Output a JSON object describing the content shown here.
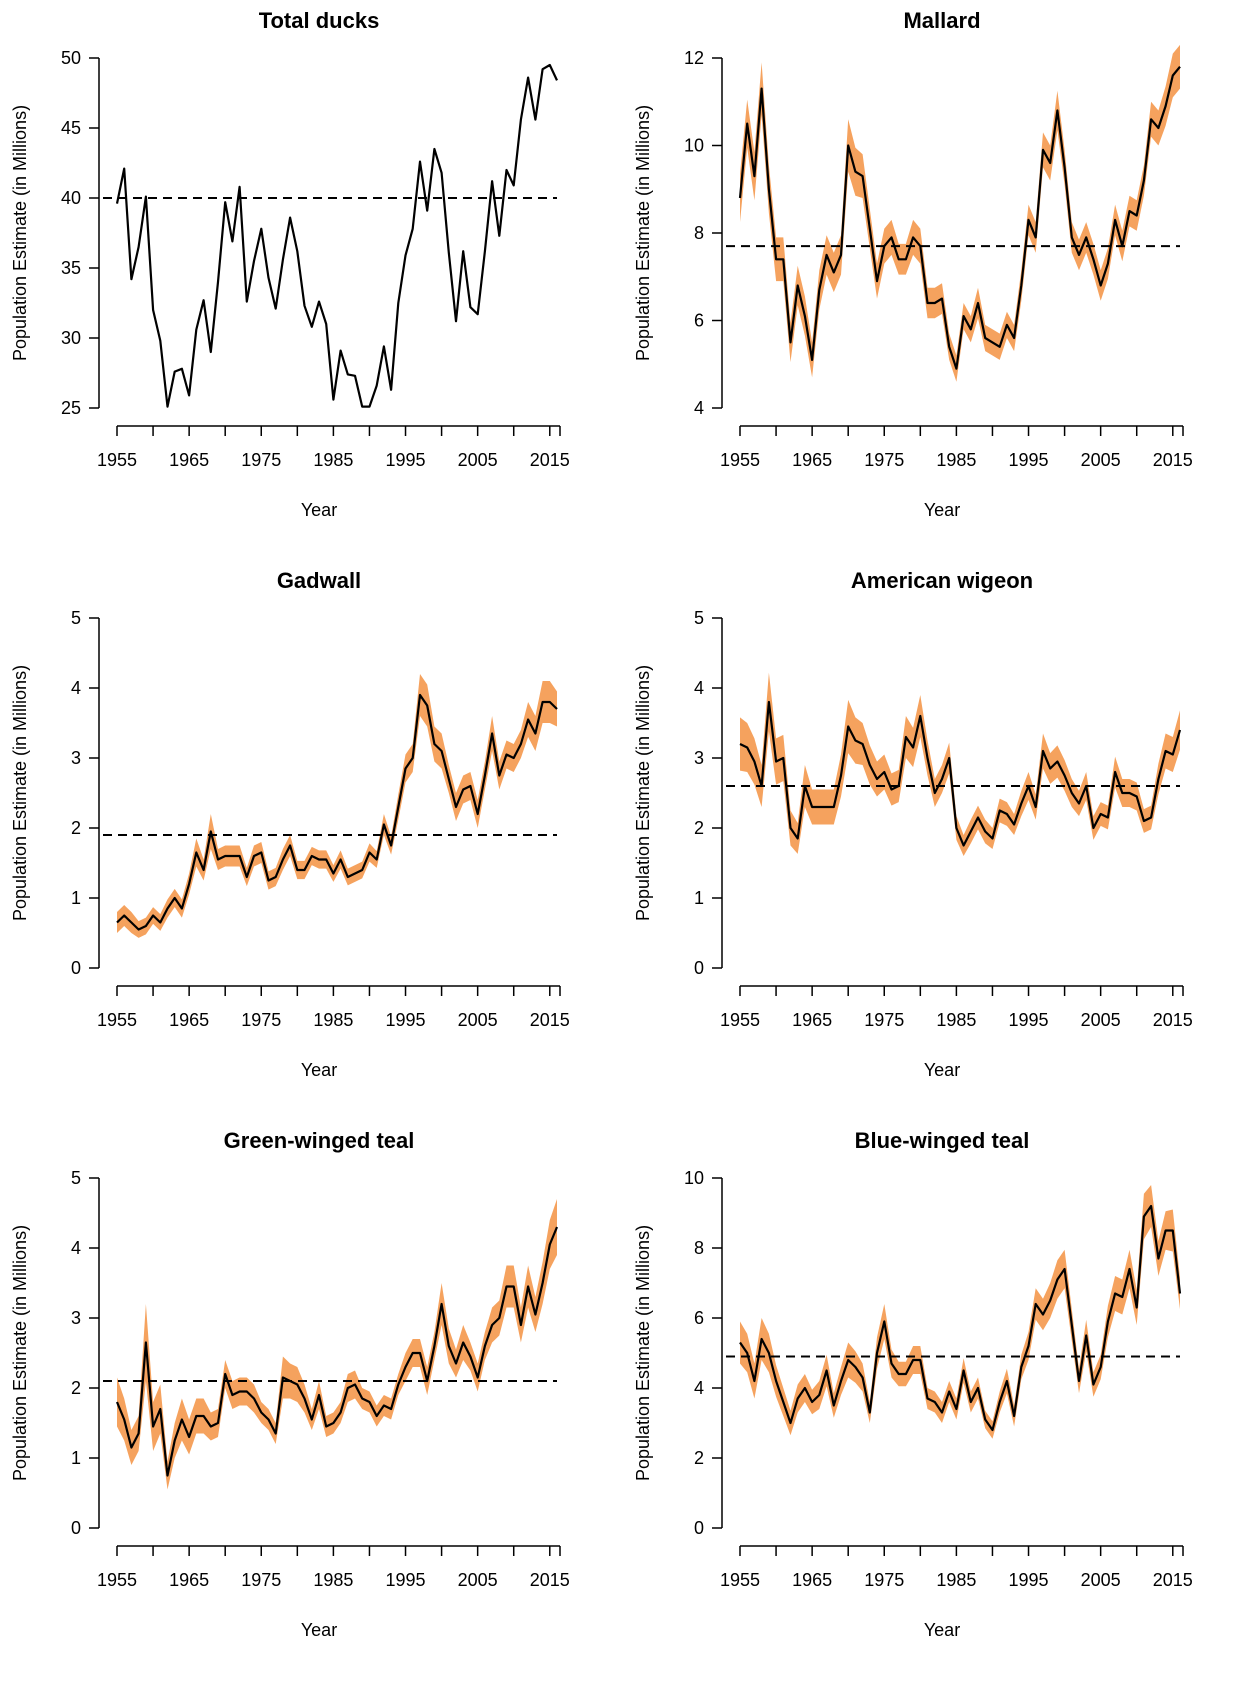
{
  "colors": {
    "band": "#f5a25e",
    "line": "#000000",
    "reference": "#000000"
  },
  "chart_data": [
    {
      "type": "line",
      "title": "Total ducks",
      "xlabel": "Year",
      "ylabel": "Population Estimate (in Millions)",
      "xlim": [
        1955,
        2016
      ],
      "ylim": [
        25,
        50
      ],
      "xticks": [
        "1955",
        "1965",
        "1975",
        "1985",
        "1995",
        "2005",
        "2015"
      ],
      "yticks": [
        "25",
        "30",
        "35",
        "40",
        "45",
        "50"
      ],
      "reference_line": 40,
      "has_band": false,
      "x": [
        1955,
        1956,
        1957,
        1958,
        1959,
        1960,
        1961,
        1962,
        1963,
        1964,
        1965,
        1966,
        1967,
        1968,
        1969,
        1970,
        1971,
        1972,
        1973,
        1974,
        1975,
        1976,
        1977,
        1978,
        1979,
        1980,
        1981,
        1982,
        1983,
        1984,
        1985,
        1986,
        1987,
        1988,
        1989,
        1990,
        1991,
        1992,
        1993,
        1994,
        1995,
        1996,
        1997,
        1998,
        1999,
        2000,
        2001,
        2002,
        2003,
        2004,
        2005,
        2006,
        2007,
        2008,
        2009,
        2010,
        2011,
        2012,
        2013,
        2014,
        2015,
        2016
      ],
      "y": [
        39.6,
        42.1,
        34.2,
        36.5,
        40.1,
        32.0,
        29.8,
        25.1,
        27.6,
        27.8,
        25.9,
        30.6,
        32.7,
        29.0,
        34.0,
        39.7,
        36.9,
        40.8,
        32.6,
        35.5,
        37.8,
        34.3,
        32.1,
        35.6,
        38.6,
        36.2,
        32.3,
        30.8,
        32.6,
        31.0,
        25.6,
        29.1,
        27.4,
        27.3,
        25.1,
        25.1,
        26.6,
        29.4,
        26.3,
        32.5,
        35.9,
        37.8,
        42.6,
        39.1,
        43.5,
        41.8,
        36.1,
        31.2,
        36.2,
        32.2,
        31.7,
        36.2,
        41.2,
        37.3,
        42.0,
        40.9,
        45.6,
        48.6,
        45.6,
        49.2,
        49.5,
        48.4
      ]
    },
    {
      "type": "line",
      "title": "Mallard",
      "xlabel": "Year",
      "ylabel": "Population Estimate (in Millions)",
      "xlim": [
        1955,
        2016
      ],
      "ylim": [
        4,
        12
      ],
      "xticks": [
        "1955",
        "1965",
        "1975",
        "1985",
        "1995",
        "2005",
        "2015"
      ],
      "yticks": [
        "4",
        "6",
        "8",
        "10",
        "12"
      ],
      "reference_line": 7.7,
      "has_band": true,
      "x": [
        1955,
        1956,
        1957,
        1958,
        1959,
        1960,
        1961,
        1962,
        1963,
        1964,
        1965,
        1966,
        1967,
        1968,
        1969,
        1970,
        1971,
        1972,
        1973,
        1974,
        1975,
        1976,
        1977,
        1978,
        1979,
        1980,
        1981,
        1982,
        1983,
        1984,
        1985,
        1986,
        1987,
        1988,
        1989,
        1990,
        1991,
        1992,
        1993,
        1994,
        1995,
        1996,
        1997,
        1998,
        1999,
        2000,
        2001,
        2002,
        2003,
        2004,
        2005,
        2006,
        2007,
        2008,
        2009,
        2010,
        2011,
        2012,
        2013,
        2014,
        2015,
        2016
      ],
      "y": [
        8.8,
        10.5,
        9.3,
        11.3,
        9.0,
        7.4,
        7.4,
        5.5,
        6.8,
        6.1,
        5.1,
        6.7,
        7.5,
        7.1,
        7.5,
        10.0,
        9.4,
        9.3,
        8.1,
        6.9,
        7.7,
        7.9,
        7.4,
        7.4,
        7.9,
        7.7,
        6.4,
        6.4,
        6.5,
        5.4,
        4.9,
        6.1,
        5.8,
        6.4,
        5.6,
        5.5,
        5.4,
        5.9,
        5.6,
        6.8,
        8.3,
        7.9,
        9.9,
        9.6,
        10.8,
        9.5,
        7.9,
        7.5,
        7.9,
        7.4,
        6.8,
        7.3,
        8.3,
        7.7,
        8.5,
        8.4,
        9.2,
        10.6,
        10.4,
        10.9,
        11.6,
        11.8
      ],
      "band_halfwidth": [
        0.55,
        0.55,
        0.55,
        0.6,
        0.55,
        0.5,
        0.5,
        0.45,
        0.45,
        0.45,
        0.4,
        0.45,
        0.45,
        0.45,
        0.45,
        0.6,
        0.55,
        0.5,
        0.45,
        0.4,
        0.4,
        0.4,
        0.35,
        0.35,
        0.4,
        0.4,
        0.35,
        0.35,
        0.35,
        0.3,
        0.3,
        0.3,
        0.3,
        0.35,
        0.3,
        0.3,
        0.3,
        0.3,
        0.3,
        0.35,
        0.35,
        0.35,
        0.4,
        0.4,
        0.45,
        0.4,
        0.35,
        0.35,
        0.35,
        0.35,
        0.35,
        0.35,
        0.35,
        0.35,
        0.35,
        0.35,
        0.35,
        0.4,
        0.4,
        0.45,
        0.5,
        0.5
      ]
    },
    {
      "type": "line",
      "title": "Gadwall",
      "xlabel": "Year",
      "ylabel": "Population Estimate (in Millions)",
      "xlim": [
        1955,
        2016
      ],
      "ylim": [
        0,
        5
      ],
      "xticks": [
        "1955",
        "1965",
        "1975",
        "1985",
        "1995",
        "2005",
        "2015"
      ],
      "yticks": [
        "0",
        "1",
        "2",
        "3",
        "4",
        "5"
      ],
      "reference_line": 1.9,
      "has_band": true,
      "x": [
        1955,
        1956,
        1957,
        1958,
        1959,
        1960,
        1961,
        1962,
        1963,
        1964,
        1965,
        1966,
        1967,
        1968,
        1969,
        1970,
        1971,
        1972,
        1973,
        1974,
        1975,
        1976,
        1977,
        1978,
        1979,
        1980,
        1981,
        1982,
        1983,
        1984,
        1985,
        1986,
        1987,
        1988,
        1989,
        1990,
        1991,
        1992,
        1993,
        1994,
        1995,
        1996,
        1997,
        1998,
        1999,
        2000,
        2001,
        2002,
        2003,
        2004,
        2005,
        2006,
        2007,
        2008,
        2009,
        2010,
        2011,
        2012,
        2013,
        2014,
        2015,
        2016
      ],
      "y": [
        0.65,
        0.75,
        0.65,
        0.55,
        0.6,
        0.75,
        0.65,
        0.85,
        1.0,
        0.85,
        1.2,
        1.65,
        1.4,
        1.95,
        1.55,
        1.6,
        1.6,
        1.6,
        1.3,
        1.6,
        1.65,
        1.25,
        1.3,
        1.55,
        1.75,
        1.4,
        1.4,
        1.6,
        1.55,
        1.55,
        1.35,
        1.55,
        1.3,
        1.35,
        1.4,
        1.65,
        1.55,
        2.05,
        1.75,
        2.3,
        2.85,
        3.0,
        3.9,
        3.75,
        3.2,
        3.1,
        2.7,
        2.3,
        2.55,
        2.6,
        2.2,
        2.75,
        3.35,
        2.75,
        3.05,
        3.0,
        3.2,
        3.55,
        3.35,
        3.8,
        3.8,
        3.7
      ],
      "band_halfwidth": [
        0.15,
        0.15,
        0.15,
        0.12,
        0.12,
        0.12,
        0.12,
        0.13,
        0.13,
        0.13,
        0.15,
        0.2,
        0.15,
        0.25,
        0.15,
        0.15,
        0.15,
        0.15,
        0.13,
        0.15,
        0.15,
        0.13,
        0.13,
        0.15,
        0.15,
        0.13,
        0.13,
        0.13,
        0.13,
        0.13,
        0.12,
        0.13,
        0.12,
        0.12,
        0.12,
        0.13,
        0.12,
        0.15,
        0.13,
        0.18,
        0.2,
        0.2,
        0.3,
        0.3,
        0.25,
        0.25,
        0.2,
        0.2,
        0.2,
        0.2,
        0.2,
        0.2,
        0.25,
        0.2,
        0.2,
        0.2,
        0.2,
        0.25,
        0.25,
        0.3,
        0.3,
        0.25
      ]
    },
    {
      "type": "line",
      "title": "American wigeon",
      "xlabel": "Year",
      "ylabel": "Population Estimate (in Millions)",
      "xlim": [
        1955,
        2016
      ],
      "ylim": [
        0,
        5
      ],
      "xticks": [
        "1955",
        "1965",
        "1975",
        "1985",
        "1995",
        "2005",
        "2015"
      ],
      "yticks": [
        "0",
        "1",
        "2",
        "3",
        "4",
        "5"
      ],
      "reference_line": 2.6,
      "has_band": true,
      "x": [
        1955,
        1956,
        1957,
        1958,
        1959,
        1960,
        1961,
        1962,
        1963,
        1964,
        1965,
        1966,
        1967,
        1968,
        1969,
        1970,
        1971,
        1972,
        1973,
        1974,
        1975,
        1976,
        1977,
        1978,
        1979,
        1980,
        1981,
        1982,
        1983,
        1984,
        1985,
        1986,
        1987,
        1988,
        1989,
        1990,
        1991,
        1992,
        1993,
        1994,
        1995,
        1996,
        1997,
        1998,
        1999,
        2000,
        2001,
        2002,
        2003,
        2004,
        2005,
        2006,
        2007,
        2008,
        2009,
        2010,
        2011,
        2012,
        2013,
        2014,
        2015,
        2016
      ],
      "y": [
        3.2,
        3.15,
        2.95,
        2.6,
        3.8,
        2.95,
        3.0,
        2.0,
        1.85,
        2.6,
        2.3,
        2.3,
        2.3,
        2.3,
        2.75,
        3.45,
        3.25,
        3.2,
        2.9,
        2.7,
        2.8,
        2.55,
        2.6,
        3.3,
        3.15,
        3.6,
        3.0,
        2.5,
        2.7,
        3.0,
        2.0,
        1.75,
        1.95,
        2.15,
        1.95,
        1.85,
        2.25,
        2.2,
        2.05,
        2.35,
        2.6,
        2.3,
        3.1,
        2.85,
        2.95,
        2.75,
        2.5,
        2.35,
        2.6,
        2.0,
        2.2,
        2.15,
        2.8,
        2.5,
        2.5,
        2.45,
        2.1,
        2.15,
        2.7,
        3.1,
        3.05,
        3.4
      ],
      "band_halfwidth": [
        0.38,
        0.35,
        0.33,
        0.3,
        0.42,
        0.33,
        0.33,
        0.25,
        0.22,
        0.3,
        0.25,
        0.25,
        0.25,
        0.25,
        0.3,
        0.38,
        0.33,
        0.3,
        0.28,
        0.25,
        0.25,
        0.23,
        0.23,
        0.3,
        0.28,
        0.3,
        0.25,
        0.2,
        0.2,
        0.22,
        0.17,
        0.15,
        0.17,
        0.17,
        0.17,
        0.15,
        0.17,
        0.17,
        0.15,
        0.18,
        0.2,
        0.18,
        0.25,
        0.22,
        0.23,
        0.22,
        0.2,
        0.18,
        0.2,
        0.17,
        0.17,
        0.17,
        0.22,
        0.2,
        0.2,
        0.2,
        0.17,
        0.17,
        0.22,
        0.25,
        0.25,
        0.28
      ]
    },
    {
      "type": "line",
      "title": "Green-winged teal",
      "xlabel": "Year",
      "ylabel": "Population Estimate (in Millions)",
      "xlim": [
        1955,
        2016
      ],
      "ylim": [
        0,
        5
      ],
      "xticks": [
        "1955",
        "1965",
        "1975",
        "1985",
        "1995",
        "2005",
        "2015"
      ],
      "yticks": [
        "0",
        "1",
        "2",
        "3",
        "4",
        "5"
      ],
      "reference_line": 2.1,
      "has_band": true,
      "x": [
        1955,
        1956,
        1957,
        1958,
        1959,
        1960,
        1961,
        1962,
        1963,
        1964,
        1965,
        1966,
        1967,
        1968,
        1969,
        1970,
        1971,
        1972,
        1973,
        1974,
        1975,
        1976,
        1977,
        1978,
        1979,
        1980,
        1981,
        1982,
        1983,
        1984,
        1985,
        1986,
        1987,
        1988,
        1989,
        1990,
        1991,
        1992,
        1993,
        1994,
        1995,
        1996,
        1997,
        1998,
        1999,
        2000,
        2001,
        2002,
        2003,
        2004,
        2005,
        2006,
        2007,
        2008,
        2009,
        2010,
        2011,
        2012,
        2013,
        2014,
        2015,
        2016
      ],
      "y": [
        1.8,
        1.55,
        1.15,
        1.35,
        2.65,
        1.45,
        1.7,
        0.75,
        1.25,
        1.55,
        1.3,
        1.6,
        1.6,
        1.45,
        1.5,
        2.2,
        1.9,
        1.95,
        1.95,
        1.85,
        1.65,
        1.55,
        1.35,
        2.15,
        2.1,
        2.05,
        1.85,
        1.55,
        1.9,
        1.45,
        1.5,
        1.65,
        2.0,
        2.05,
        1.85,
        1.8,
        1.6,
        1.75,
        1.7,
        2.05,
        2.3,
        2.5,
        2.5,
        2.1,
        2.6,
        3.2,
        2.6,
        2.35,
        2.65,
        2.45,
        2.15,
        2.6,
        2.9,
        3.0,
        3.45,
        3.45,
        2.9,
        3.45,
        3.05,
        3.5,
        4.05,
        4.3
      ],
      "band_halfwidth": [
        0.35,
        0.3,
        0.25,
        0.25,
        0.55,
        0.35,
        0.35,
        0.2,
        0.25,
        0.3,
        0.25,
        0.25,
        0.25,
        0.2,
        0.2,
        0.2,
        0.2,
        0.2,
        0.2,
        0.2,
        0.15,
        0.15,
        0.15,
        0.3,
        0.25,
        0.25,
        0.2,
        0.15,
        0.2,
        0.15,
        0.15,
        0.15,
        0.2,
        0.2,
        0.15,
        0.15,
        0.15,
        0.15,
        0.15,
        0.15,
        0.2,
        0.2,
        0.2,
        0.2,
        0.2,
        0.3,
        0.25,
        0.2,
        0.25,
        0.2,
        0.2,
        0.2,
        0.25,
        0.25,
        0.3,
        0.3,
        0.25,
        0.3,
        0.25,
        0.3,
        0.35,
        0.4
      ]
    },
    {
      "type": "line",
      "title": "Blue-winged teal",
      "xlabel": "Year",
      "ylabel": "Population Estimate (in Millions)",
      "xlim": [
        1955,
        2016
      ],
      "ylim": [
        0,
        10
      ],
      "xticks": [
        "1955",
        "1965",
        "1975",
        "1985",
        "1995",
        "2005",
        "2015"
      ],
      "yticks": [
        "0",
        "2",
        "4",
        "6",
        "8",
        "10"
      ],
      "reference_line": 4.9,
      "has_band": true,
      "x": [
        1955,
        1956,
        1957,
        1958,
        1959,
        1960,
        1961,
        1962,
        1963,
        1964,
        1965,
        1966,
        1967,
        1968,
        1969,
        1970,
        1971,
        1972,
        1973,
        1974,
        1975,
        1976,
        1977,
        1978,
        1979,
        1980,
        1981,
        1982,
        1983,
        1984,
        1985,
        1986,
        1987,
        1988,
        1989,
        1990,
        1991,
        1992,
        1993,
        1994,
        1995,
        1996,
        1997,
        1998,
        1999,
        2000,
        2001,
        2002,
        2003,
        2004,
        2005,
        2006,
        2007,
        2008,
        2009,
        2010,
        2011,
        2012,
        2013,
        2014,
        2015,
        2016
      ],
      "y": [
        5.3,
        5.0,
        4.2,
        5.4,
        5.0,
        4.2,
        3.6,
        3.0,
        3.7,
        4.0,
        3.6,
        3.8,
        4.5,
        3.5,
        4.2,
        4.8,
        4.6,
        4.3,
        3.3,
        5.0,
        5.9,
        4.7,
        4.4,
        4.4,
        4.8,
        4.8,
        3.7,
        3.6,
        3.3,
        3.9,
        3.4,
        4.5,
        3.6,
        4.0,
        3.1,
        2.8,
        3.6,
        4.2,
        3.2,
        4.6,
        5.2,
        6.4,
        6.1,
        6.5,
        7.1,
        7.4,
        5.8,
        4.2,
        5.5,
        4.1,
        4.6,
        5.9,
        6.7,
        6.6,
        7.4,
        6.3,
        8.9,
        9.2,
        7.7,
        8.5,
        8.5,
        6.7
      ],
      "band_halfwidth": [
        0.6,
        0.55,
        0.5,
        0.6,
        0.55,
        0.45,
        0.4,
        0.35,
        0.4,
        0.4,
        0.35,
        0.4,
        0.45,
        0.35,
        0.4,
        0.5,
        0.45,
        0.4,
        0.3,
        0.45,
        0.5,
        0.4,
        0.35,
        0.35,
        0.4,
        0.4,
        0.3,
        0.3,
        0.3,
        0.3,
        0.3,
        0.35,
        0.3,
        0.3,
        0.25,
        0.25,
        0.3,
        0.35,
        0.3,
        0.35,
        0.4,
        0.45,
        0.45,
        0.5,
        0.55,
        0.55,
        0.45,
        0.35,
        0.45,
        0.35,
        0.35,
        0.45,
        0.5,
        0.5,
        0.55,
        0.5,
        0.65,
        0.6,
        0.5,
        0.55,
        0.6,
        0.45
      ]
    }
  ]
}
